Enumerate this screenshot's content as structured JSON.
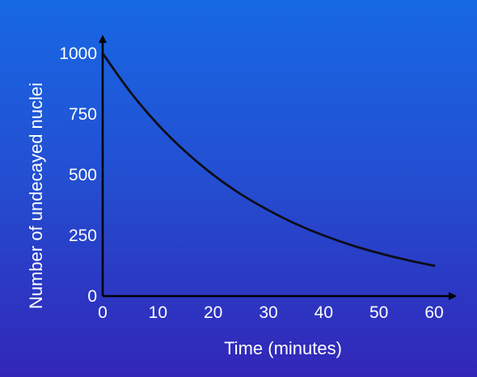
{
  "chart_data": {
    "type": "line",
    "title": "",
    "xlabel": "Time (minutes)",
    "ylabel": "Number of undecayed nuclei",
    "xlim": [
      0,
      60
    ],
    "ylim": [
      0,
      1000
    ],
    "x_ticks": [
      "0",
      "10",
      "20",
      "30",
      "40",
      "50",
      "60"
    ],
    "y_ticks": [
      "0",
      "250",
      "500",
      "750",
      "1000"
    ],
    "series": [
      {
        "x": [
          0,
          5,
          10,
          15,
          20,
          25,
          30,
          35,
          40,
          45,
          50,
          55,
          60
        ],
        "values": [
          1000,
          841,
          707,
          595,
          500,
          420,
          354,
          297,
          250,
          210,
          177,
          149,
          125
        ]
      }
    ],
    "grid": false,
    "colors": {
      "background_top": "#1768e4",
      "background_bottom": "#3226b8",
      "line": "#0d0d18",
      "axis": "#000000",
      "text": "#ffffff"
    }
  }
}
